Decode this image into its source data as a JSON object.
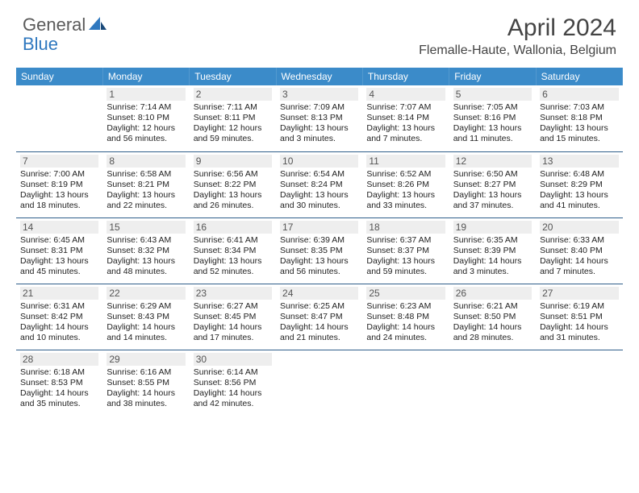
{
  "brand": {
    "part1": "General",
    "part2": "Blue"
  },
  "title": "April 2024",
  "location": "Flemalle-Haute, Wallonia, Belgium",
  "colors": {
    "header_bg": "#3b8bc9",
    "header_fg": "#ffffff",
    "divider": "#2f5e8a",
    "daynum_bg": "#eeeeee",
    "title_color": "#444444",
    "brand_gray": "#5a5a5a",
    "brand_blue": "#2f78bf"
  },
  "typography": {
    "title_fontsize": 30,
    "location_fontsize": 16,
    "header_fontsize": 12,
    "cell_fontsize": 10.5,
    "daynum_fontsize": 12
  },
  "weekdays": [
    "Sunday",
    "Monday",
    "Tuesday",
    "Wednesday",
    "Thursday",
    "Friday",
    "Saturday"
  ],
  "weeks": [
    [
      null,
      {
        "n": "1",
        "sr": "Sunrise: 7:14 AM",
        "ss": "Sunset: 8:10 PM",
        "d1": "Daylight: 12 hours",
        "d2": "and 56 minutes."
      },
      {
        "n": "2",
        "sr": "Sunrise: 7:11 AM",
        "ss": "Sunset: 8:11 PM",
        "d1": "Daylight: 12 hours",
        "d2": "and 59 minutes."
      },
      {
        "n": "3",
        "sr": "Sunrise: 7:09 AM",
        "ss": "Sunset: 8:13 PM",
        "d1": "Daylight: 13 hours",
        "d2": "and 3 minutes."
      },
      {
        "n": "4",
        "sr": "Sunrise: 7:07 AM",
        "ss": "Sunset: 8:14 PM",
        "d1": "Daylight: 13 hours",
        "d2": "and 7 minutes."
      },
      {
        "n": "5",
        "sr": "Sunrise: 7:05 AM",
        "ss": "Sunset: 8:16 PM",
        "d1": "Daylight: 13 hours",
        "d2": "and 11 minutes."
      },
      {
        "n": "6",
        "sr": "Sunrise: 7:03 AM",
        "ss": "Sunset: 8:18 PM",
        "d1": "Daylight: 13 hours",
        "d2": "and 15 minutes."
      }
    ],
    [
      {
        "n": "7",
        "sr": "Sunrise: 7:00 AM",
        "ss": "Sunset: 8:19 PM",
        "d1": "Daylight: 13 hours",
        "d2": "and 18 minutes."
      },
      {
        "n": "8",
        "sr": "Sunrise: 6:58 AM",
        "ss": "Sunset: 8:21 PM",
        "d1": "Daylight: 13 hours",
        "d2": "and 22 minutes."
      },
      {
        "n": "9",
        "sr": "Sunrise: 6:56 AM",
        "ss": "Sunset: 8:22 PM",
        "d1": "Daylight: 13 hours",
        "d2": "and 26 minutes."
      },
      {
        "n": "10",
        "sr": "Sunrise: 6:54 AM",
        "ss": "Sunset: 8:24 PM",
        "d1": "Daylight: 13 hours",
        "d2": "and 30 minutes."
      },
      {
        "n": "11",
        "sr": "Sunrise: 6:52 AM",
        "ss": "Sunset: 8:26 PM",
        "d1": "Daylight: 13 hours",
        "d2": "and 33 minutes."
      },
      {
        "n": "12",
        "sr": "Sunrise: 6:50 AM",
        "ss": "Sunset: 8:27 PM",
        "d1": "Daylight: 13 hours",
        "d2": "and 37 minutes."
      },
      {
        "n": "13",
        "sr": "Sunrise: 6:48 AM",
        "ss": "Sunset: 8:29 PM",
        "d1": "Daylight: 13 hours",
        "d2": "and 41 minutes."
      }
    ],
    [
      {
        "n": "14",
        "sr": "Sunrise: 6:45 AM",
        "ss": "Sunset: 8:31 PM",
        "d1": "Daylight: 13 hours",
        "d2": "and 45 minutes."
      },
      {
        "n": "15",
        "sr": "Sunrise: 6:43 AM",
        "ss": "Sunset: 8:32 PM",
        "d1": "Daylight: 13 hours",
        "d2": "and 48 minutes."
      },
      {
        "n": "16",
        "sr": "Sunrise: 6:41 AM",
        "ss": "Sunset: 8:34 PM",
        "d1": "Daylight: 13 hours",
        "d2": "and 52 minutes."
      },
      {
        "n": "17",
        "sr": "Sunrise: 6:39 AM",
        "ss": "Sunset: 8:35 PM",
        "d1": "Daylight: 13 hours",
        "d2": "and 56 minutes."
      },
      {
        "n": "18",
        "sr": "Sunrise: 6:37 AM",
        "ss": "Sunset: 8:37 PM",
        "d1": "Daylight: 13 hours",
        "d2": "and 59 minutes."
      },
      {
        "n": "19",
        "sr": "Sunrise: 6:35 AM",
        "ss": "Sunset: 8:39 PM",
        "d1": "Daylight: 14 hours",
        "d2": "and 3 minutes."
      },
      {
        "n": "20",
        "sr": "Sunrise: 6:33 AM",
        "ss": "Sunset: 8:40 PM",
        "d1": "Daylight: 14 hours",
        "d2": "and 7 minutes."
      }
    ],
    [
      {
        "n": "21",
        "sr": "Sunrise: 6:31 AM",
        "ss": "Sunset: 8:42 PM",
        "d1": "Daylight: 14 hours",
        "d2": "and 10 minutes."
      },
      {
        "n": "22",
        "sr": "Sunrise: 6:29 AM",
        "ss": "Sunset: 8:43 PM",
        "d1": "Daylight: 14 hours",
        "d2": "and 14 minutes."
      },
      {
        "n": "23",
        "sr": "Sunrise: 6:27 AM",
        "ss": "Sunset: 8:45 PM",
        "d1": "Daylight: 14 hours",
        "d2": "and 17 minutes."
      },
      {
        "n": "24",
        "sr": "Sunrise: 6:25 AM",
        "ss": "Sunset: 8:47 PM",
        "d1": "Daylight: 14 hours",
        "d2": "and 21 minutes."
      },
      {
        "n": "25",
        "sr": "Sunrise: 6:23 AM",
        "ss": "Sunset: 8:48 PM",
        "d1": "Daylight: 14 hours",
        "d2": "and 24 minutes."
      },
      {
        "n": "26",
        "sr": "Sunrise: 6:21 AM",
        "ss": "Sunset: 8:50 PM",
        "d1": "Daylight: 14 hours",
        "d2": "and 28 minutes."
      },
      {
        "n": "27",
        "sr": "Sunrise: 6:19 AM",
        "ss": "Sunset: 8:51 PM",
        "d1": "Daylight: 14 hours",
        "d2": "and 31 minutes."
      }
    ],
    [
      {
        "n": "28",
        "sr": "Sunrise: 6:18 AM",
        "ss": "Sunset: 8:53 PM",
        "d1": "Daylight: 14 hours",
        "d2": "and 35 minutes."
      },
      {
        "n": "29",
        "sr": "Sunrise: 6:16 AM",
        "ss": "Sunset: 8:55 PM",
        "d1": "Daylight: 14 hours",
        "d2": "and 38 minutes."
      },
      {
        "n": "30",
        "sr": "Sunrise: 6:14 AM",
        "ss": "Sunset: 8:56 PM",
        "d1": "Daylight: 14 hours",
        "d2": "and 42 minutes."
      },
      null,
      null,
      null,
      null
    ]
  ]
}
